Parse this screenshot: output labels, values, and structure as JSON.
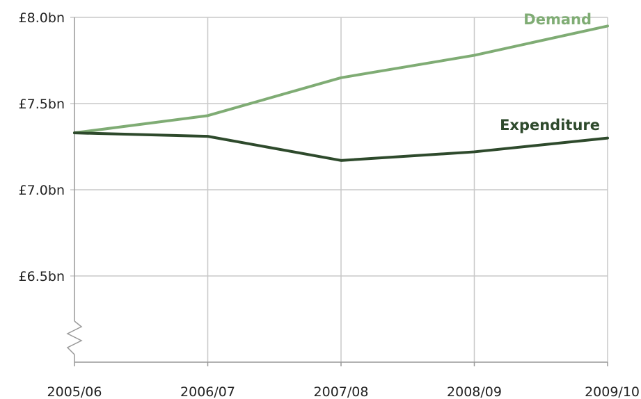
{
  "chart_data": {
    "type": "line",
    "categories": [
      "2005/06",
      "2006/07",
      "2007/08",
      "2008/09",
      "2009/10"
    ],
    "y_tick_labels": [
      "£8.0bn",
      "£7.5bn",
      "£7.0bn",
      "£6.5bn"
    ],
    "y_ticks": [
      8.0,
      7.5,
      7.0,
      6.5
    ],
    "ylim": [
      6.0,
      8.0
    ],
    "y_axis_break": true,
    "grid": true,
    "series": [
      {
        "name": "Demand",
        "color": "#7fac74",
        "values": [
          7.33,
          7.43,
          7.65,
          7.78,
          7.95
        ]
      },
      {
        "name": "Expenditure",
        "color": "#2e4a2c",
        "values": [
          7.33,
          7.31,
          7.17,
          7.22,
          7.3
        ]
      }
    ],
    "title": "",
    "xlabel": "",
    "ylabel": ""
  }
}
